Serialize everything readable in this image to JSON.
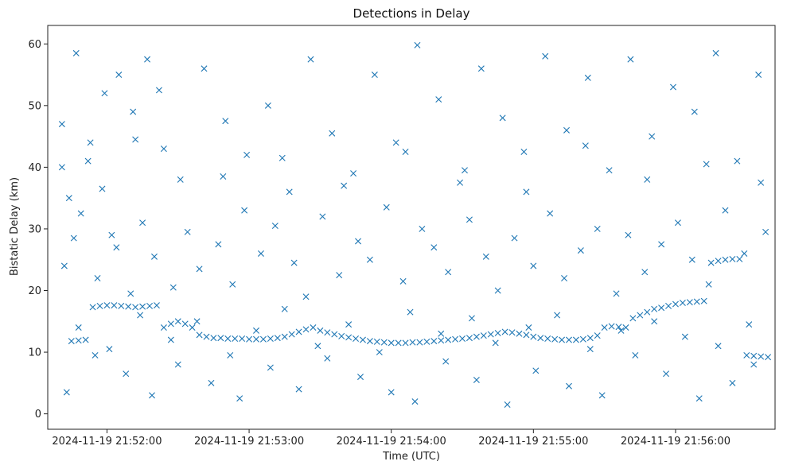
{
  "chart_data": {
    "type": "scatter",
    "title": "Detections in Delay",
    "xlabel": "Time (UTC)",
    "ylabel": "Bistatic Delay (km)",
    "marker": "x",
    "marker_color": "#1f77b4",
    "grid": false,
    "legend": "none",
    "x_is_time": true,
    "x_ticks": [
      "2024-11-19 21:52:00",
      "2024-11-19 21:53:00",
      "2024-11-19 21:54:00",
      "2024-11-19 21:55:00",
      "2024-11-19 21:56:00"
    ],
    "y_ticks": [
      0,
      10,
      20,
      30,
      40,
      50,
      60
    ],
    "xlim": [
      "2024-11-19 21:51:35",
      "2024-11-19 21:56:42"
    ],
    "ylim": [
      -2.5,
      63
    ],
    "series": [
      {
        "points_x": [
          "2024-11-19 21:51:41",
          "2024-11-19 21:51:47",
          "2024-11-19 21:51:53",
          "2024-11-19 21:51:59",
          "2024-11-19 21:52:05",
          "2024-11-19 21:52:11",
          "2024-11-19 21:52:17",
          "2024-11-19 21:51:44",
          "2024-11-19 21:51:52",
          "2024-11-19 21:52:02",
          "2024-11-19 21:52:12",
          "2024-11-19 21:52:22",
          "2024-11-19 21:52:31",
          "2024-11-19 21:52:41",
          "2024-11-19 21:52:50",
          "2024-11-19 21:52:59",
          "2024-11-19 21:53:08",
          "2024-11-19 21:53:17",
          "2024-11-19 21:53:26",
          "2024-11-19 21:53:35",
          "2024-11-19 21:53:44",
          "2024-11-19 21:53:53",
          "2024-11-19 21:54:02",
          "2024-11-19 21:54:11",
          "2024-11-19 21:54:20",
          "2024-11-19 21:54:29",
          "2024-11-19 21:54:38",
          "2024-11-19 21:54:47",
          "2024-11-19 21:54:56",
          "2024-11-19 21:55:05",
          "2024-11-19 21:55:14",
          "2024-11-19 21:55:23",
          "2024-11-19 21:55:32",
          "2024-11-19 21:55:41",
          "2024-11-19 21:55:50",
          "2024-11-19 21:55:59",
          "2024-11-19 21:56:08",
          "2024-11-19 21:56:17",
          "2024-11-19 21:56:26",
          "2024-11-19 21:56:35",
          "2024-11-19 21:51:42",
          "2024-11-19 21:51:46",
          "2024-11-19 21:51:49",
          "2024-11-19 21:51:56",
          "2024-11-19 21:52:04",
          "2024-11-19 21:52:10",
          "2024-11-19 21:52:15",
          "2024-11-19 21:52:20",
          "2024-11-19 21:52:28",
          "2024-11-19 21:52:34",
          "2024-11-19 21:52:39",
          "2024-11-19 21:52:47",
          "2024-11-19 21:52:53",
          "2024-11-19 21:52:58",
          "2024-11-19 21:53:05",
          "2024-11-19 21:53:11",
          "2024-11-19 21:53:19",
          "2024-11-19 21:53:24",
          "2024-11-19 21:53:31",
          "2024-11-19 21:53:38",
          "2024-11-19 21:53:46",
          "2024-11-19 21:53:51",
          "2024-11-19 21:53:58",
          "2024-11-19 21:54:05",
          "2024-11-19 21:54:13",
          "2024-11-19 21:54:18",
          "2024-11-19 21:54:24",
          "2024-11-19 21:54:33",
          "2024-11-19 21:54:40",
          "2024-11-19 21:54:45",
          "2024-11-19 21:54:52",
          "2024-11-19 21:55:00",
          "2024-11-19 21:55:07",
          "2024-11-19 21:55:13",
          "2024-11-19 21:55:20",
          "2024-11-19 21:55:27",
          "2024-11-19 21:55:35",
          "2024-11-19 21:55:40",
          "2024-11-19 21:55:47",
          "2024-11-19 21:55:54",
          "2024-11-19 21:56:01",
          "2024-11-19 21:56:07",
          "2024-11-19 21:56:14",
          "2024-11-19 21:56:21",
          "2024-11-19 21:56:29",
          "2024-11-19 21:56:38",
          "2024-11-19 21:51:43",
          "2024-11-19 21:51:55",
          "2024-11-19 21:52:08",
          "2024-11-19 21:52:19",
          "2024-11-19 21:52:30",
          "2024-11-19 21:52:44",
          "2024-11-19 21:52:56",
          "2024-11-19 21:53:09",
          "2024-11-19 21:53:21",
          "2024-11-19 21:53:33",
          "2024-11-19 21:53:47",
          "2024-11-19 21:54:00",
          "2024-11-19 21:54:10",
          "2024-11-19 21:54:23",
          "2024-11-19 21:54:36",
          "2024-11-19 21:54:49",
          "2024-11-19 21:55:01",
          "2024-11-19 21:55:15",
          "2024-11-19 21:55:29",
          "2024-11-19 21:55:43",
          "2024-11-19 21:55:56",
          "2024-11-19 21:56:10",
          "2024-11-19 21:56:24",
          "2024-11-19 21:56:33",
          "2024-11-19 21:51:48",
          "2024-11-19 21:52:01",
          "2024-11-19 21:52:14",
          "2024-11-19 21:52:27",
          "2024-11-19 21:52:38",
          "2024-11-19 21:52:52",
          "2024-11-19 21:53:03",
          "2024-11-19 21:53:15",
          "2024-11-19 21:53:29",
          "2024-11-19 21:53:42",
          "2024-11-19 21:53:55",
          "2024-11-19 21:54:08",
          "2024-11-19 21:54:21",
          "2024-11-19 21:54:34",
          "2024-11-19 21:54:44",
          "2024-11-19 21:54:58",
          "2024-11-19 21:55:10",
          "2024-11-19 21:55:24",
          "2024-11-19 21:55:37",
          "2024-11-19 21:55:51",
          "2024-11-19 21:56:04",
          "2024-11-19 21:56:18",
          "2024-11-19 21:56:31",
          "2024-11-19 21:51:41",
          "2024-11-19 21:51:58",
          "2024-11-19 21:52:24",
          "2024-11-19 21:52:49",
          "2024-11-19 21:53:14",
          "2024-11-19 21:53:40",
          "2024-11-19 21:54:06",
          "2024-11-19 21:54:31",
          "2024-11-19 21:54:57",
          "2024-11-19 21:55:22",
          "2024-11-19 21:55:48",
          "2024-11-19 21:56:13",
          "2024-11-19 21:56:36"
        ],
        "points_y": [
          47.0,
          58.5,
          44.0,
          52.0,
          55.0,
          49.0,
          57.5,
          35.0,
          41.0,
          29.0,
          44.5,
          52.5,
          38.0,
          56.0,
          47.5,
          42.0,
          50.0,
          36.0,
          57.5,
          45.5,
          39.0,
          55.0,
          44.0,
          59.8,
          51.0,
          37.5,
          56.0,
          48.0,
          42.5,
          58.0,
          46.0,
          54.5,
          39.5,
          57.5,
          45.0,
          53.0,
          49.0,
          58.5,
          41.0,
          55.0,
          24.0,
          28.5,
          32.5,
          22.0,
          27.0,
          19.5,
          31.0,
          25.5,
          20.5,
          29.5,
          23.5,
          27.5,
          21.0,
          33.0,
          26.0,
          30.5,
          24.5,
          19.0,
          32.0,
          22.5,
          28.0,
          25.0,
          33.5,
          21.5,
          30.0,
          27.0,
          23.0,
          31.5,
          25.5,
          20.0,
          28.5,
          24.0,
          32.5,
          22.0,
          26.5,
          30.0,
          19.5,
          29.0,
          23.0,
          27.5,
          31.0,
          25.0,
          21.0,
          33.0,
          26.0,
          29.5,
          3.5,
          9.5,
          6.5,
          3.0,
          8.0,
          5.0,
          2.5,
          7.5,
          4.0,
          9.0,
          6.0,
          3.5,
          2.0,
          8.5,
          5.5,
          1.5,
          7.0,
          4.5,
          3.0,
          9.5,
          6.5,
          2.5,
          5.0,
          8.0,
          14.0,
          10.5,
          16.0,
          12.0,
          15.0,
          9.5,
          13.5,
          17.0,
          11.0,
          14.5,
          10.0,
          16.5,
          13.0,
          15.5,
          11.5,
          14.0,
          16.0,
          10.5,
          13.5,
          15.0,
          12.5,
          11.0,
          14.5,
          40.0,
          36.5,
          43.0,
          38.5,
          41.5,
          37.0,
          42.5,
          39.5,
          36.0,
          43.5,
          38.0,
          40.5,
          37.5
        ],
        "track_x": [
          "2024-11-19 21:51:45",
          "2024-11-19 21:51:48",
          "2024-11-19 21:51:51",
          "2024-11-19 21:51:54",
          "2024-11-19 21:51:57",
          "2024-11-19 21:52:00",
          "2024-11-19 21:52:03",
          "2024-11-19 21:52:06",
          "2024-11-19 21:52:09",
          "2024-11-19 21:52:12",
          "2024-11-19 21:52:15",
          "2024-11-19 21:52:18",
          "2024-11-19 21:52:21",
          "2024-11-19 21:52:24",
          "2024-11-19 21:52:27",
          "2024-11-19 21:52:30",
          "2024-11-19 21:52:33",
          "2024-11-19 21:52:36",
          "2024-11-19 21:52:39",
          "2024-11-19 21:52:42",
          "2024-11-19 21:52:45",
          "2024-11-19 21:52:48",
          "2024-11-19 21:52:51",
          "2024-11-19 21:52:54",
          "2024-11-19 21:52:57",
          "2024-11-19 21:53:00",
          "2024-11-19 21:53:03",
          "2024-11-19 21:53:06",
          "2024-11-19 21:53:09",
          "2024-11-19 21:53:12",
          "2024-11-19 21:53:15",
          "2024-11-19 21:53:18",
          "2024-11-19 21:53:21",
          "2024-11-19 21:53:24",
          "2024-11-19 21:53:27",
          "2024-11-19 21:53:30",
          "2024-11-19 21:53:33",
          "2024-11-19 21:53:36",
          "2024-11-19 21:53:39",
          "2024-11-19 21:53:42",
          "2024-11-19 21:53:45",
          "2024-11-19 21:53:48",
          "2024-11-19 21:53:51",
          "2024-11-19 21:53:54",
          "2024-11-19 21:53:57",
          "2024-11-19 21:54:00",
          "2024-11-19 21:54:03",
          "2024-11-19 21:54:06",
          "2024-11-19 21:54:09",
          "2024-11-19 21:54:12",
          "2024-11-19 21:54:15",
          "2024-11-19 21:54:18",
          "2024-11-19 21:54:21",
          "2024-11-19 21:54:24",
          "2024-11-19 21:54:27",
          "2024-11-19 21:54:30",
          "2024-11-19 21:54:33",
          "2024-11-19 21:54:36",
          "2024-11-19 21:54:39",
          "2024-11-19 21:54:42",
          "2024-11-19 21:54:45",
          "2024-11-19 21:54:48",
          "2024-11-19 21:54:51",
          "2024-11-19 21:54:54",
          "2024-11-19 21:54:57",
          "2024-11-19 21:55:00",
          "2024-11-19 21:55:03",
          "2024-11-19 21:55:06",
          "2024-11-19 21:55:09",
          "2024-11-19 21:55:12",
          "2024-11-19 21:55:15",
          "2024-11-19 21:55:18",
          "2024-11-19 21:55:21",
          "2024-11-19 21:55:24",
          "2024-11-19 21:55:27",
          "2024-11-19 21:55:30",
          "2024-11-19 21:55:33",
          "2024-11-19 21:55:36",
          "2024-11-19 21:55:39",
          "2024-11-19 21:55:42",
          "2024-11-19 21:55:45",
          "2024-11-19 21:55:48",
          "2024-11-19 21:55:51",
          "2024-11-19 21:55:54",
          "2024-11-19 21:55:57",
          "2024-11-19 21:56:00",
          "2024-11-19 21:56:03",
          "2024-11-19 21:56:06",
          "2024-11-19 21:56:09",
          "2024-11-19 21:56:12",
          "2024-11-19 21:56:15",
          "2024-11-19 21:56:18",
          "2024-11-19 21:56:21",
          "2024-11-19 21:56:24",
          "2024-11-19 21:56:27",
          "2024-11-19 21:56:30",
          "2024-11-19 21:56:33",
          "2024-11-19 21:56:36",
          "2024-11-19 21:56:39"
        ],
        "track_y": [
          11.8,
          11.9,
          12.0,
          17.3,
          17.5,
          17.6,
          17.6,
          17.5,
          17.4,
          17.3,
          17.4,
          17.5,
          17.6,
          14.0,
          14.6,
          15.0,
          14.6,
          14.0,
          12.8,
          12.5,
          12.3,
          12.3,
          12.2,
          12.2,
          12.2,
          12.1,
          12.1,
          12.1,
          12.2,
          12.3,
          12.5,
          12.9,
          13.3,
          13.7,
          14.0,
          13.5,
          13.2,
          12.9,
          12.6,
          12.4,
          12.2,
          12.0,
          11.8,
          11.7,
          11.6,
          11.5,
          11.5,
          11.5,
          11.6,
          11.6,
          11.7,
          11.8,
          11.9,
          12.0,
          12.1,
          12.2,
          12.3,
          12.5,
          12.7,
          12.9,
          13.1,
          13.3,
          13.2,
          13.0,
          12.8,
          12.5,
          12.3,
          12.2,
          12.1,
          12.0,
          12.0,
          12.0,
          12.1,
          12.3,
          12.7,
          14.0,
          14.2,
          14.1,
          14.0,
          15.5,
          16.0,
          16.5,
          17.0,
          17.2,
          17.5,
          17.8,
          18.0,
          18.1,
          18.2,
          18.3,
          24.5,
          24.8,
          25.0,
          25.1,
          25.1,
          9.5,
          9.4,
          9.3,
          9.2
        ]
      }
    ]
  }
}
